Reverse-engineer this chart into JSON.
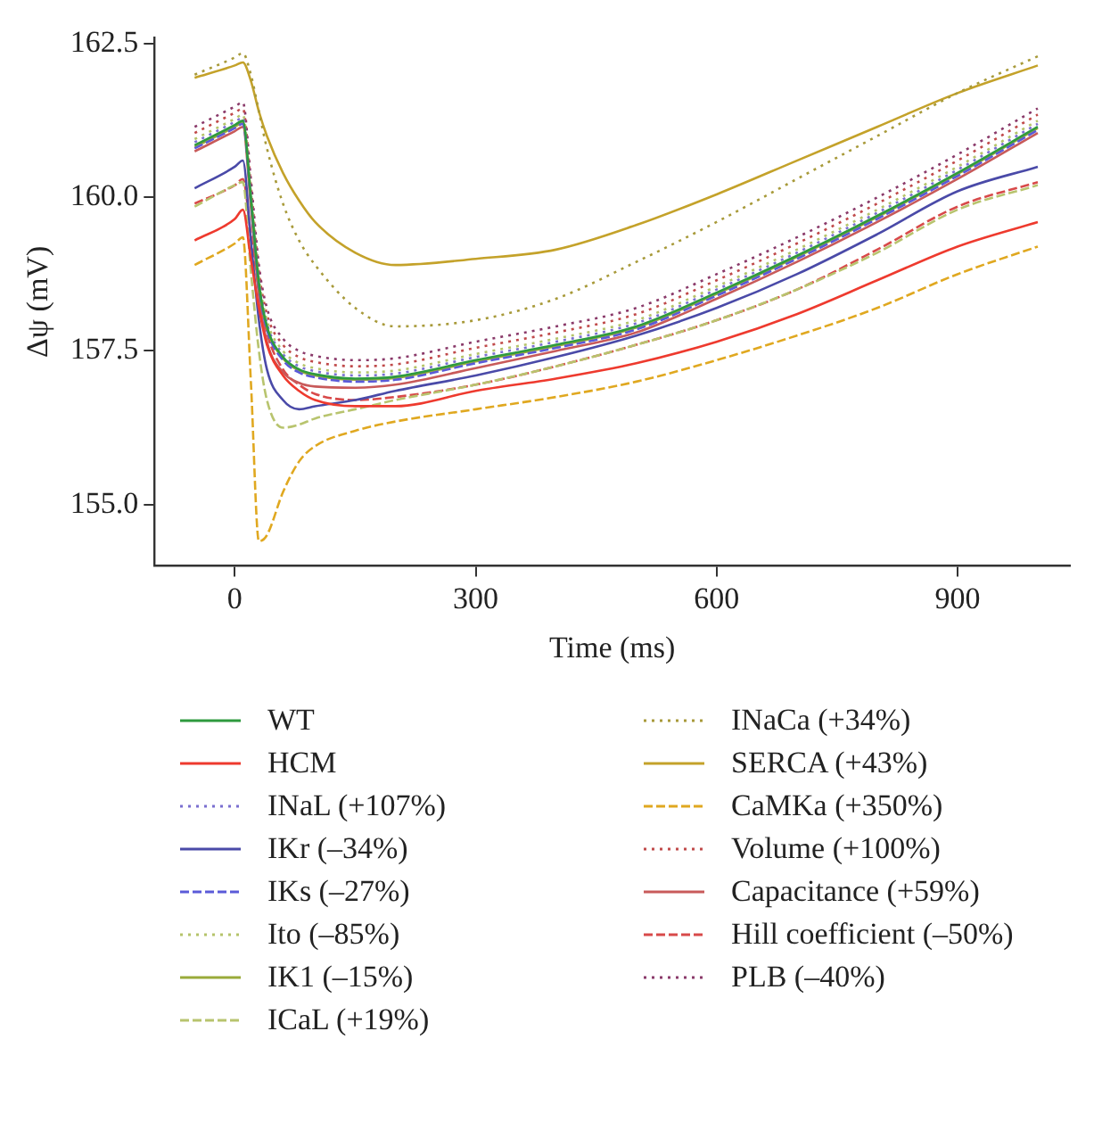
{
  "chart_data": {
    "type": "line",
    "xlabel": "Time (ms)",
    "ylabel": "Δψ (mV)",
    "x": [
      -50,
      0,
      10,
      20,
      30,
      40,
      60,
      80,
      100,
      150,
      200,
      300,
      400,
      500,
      600,
      700,
      800,
      900,
      1000
    ],
    "xlim": [
      -100,
      1040
    ],
    "xticks": [
      0,
      300,
      600,
      900
    ],
    "ylim": [
      154,
      162.6
    ],
    "yticks": [
      {
        "value": 155,
        "label": "155.0"
      },
      157.5,
      {
        "value": 160,
        "label": "160.0"
      },
      162.5
    ],
    "grid": false,
    "legend": "bottom",
    "marker": "none",
    "series": [
      {
        "name": "WT",
        "color": "#2e9a3e",
        "line_style": "solid",
        "values": [
          160.85,
          161.18,
          161.25,
          160.0,
          158.6,
          157.9,
          157.4,
          157.2,
          157.12,
          157.05,
          157.08,
          157.35,
          157.6,
          157.9,
          158.45,
          159.05,
          159.7,
          160.4,
          161.15
        ]
      },
      {
        "name": "HCM",
        "color": "#ee3a2e",
        "line_style": "solid",
        "values": [
          159.3,
          159.65,
          159.8,
          159.0,
          158.2,
          157.6,
          157.1,
          156.85,
          156.7,
          156.6,
          156.6,
          156.85,
          157.05,
          157.3,
          157.65,
          158.1,
          158.65,
          159.2,
          159.6
        ]
      },
      {
        "name": "INaL (+107%)",
        "color": "#7a6fd0",
        "line_style": "dotted",
        "values": [
          160.9,
          161.23,
          161.3,
          160.05,
          158.65,
          157.95,
          157.45,
          157.25,
          157.17,
          157.1,
          157.13,
          157.4,
          157.65,
          157.95,
          158.5,
          159.1,
          159.75,
          160.45,
          161.2
        ]
      },
      {
        "name": "IKr (–34%)",
        "color": "#4a4aa8",
        "line_style": "solid",
        "values": [
          160.15,
          160.5,
          160.6,
          159.3,
          158.0,
          157.2,
          156.7,
          156.55,
          156.6,
          156.7,
          156.85,
          157.1,
          157.4,
          157.75,
          158.2,
          158.75,
          159.4,
          160.1,
          160.5
        ]
      },
      {
        "name": "IKs (–27%)",
        "color": "#5a5ad8",
        "line_style": "dashed",
        "values": [
          160.8,
          161.13,
          161.2,
          159.95,
          158.55,
          157.85,
          157.35,
          157.15,
          157.07,
          157.0,
          157.03,
          157.3,
          157.55,
          157.85,
          158.4,
          159.0,
          159.65,
          160.35,
          161.1
        ]
      },
      {
        "name": "Ito (–85%)",
        "color": "#b5c46a",
        "line_style": "dotted",
        "values": [
          160.95,
          161.28,
          161.35,
          160.1,
          158.7,
          158.0,
          157.5,
          157.3,
          157.22,
          157.15,
          157.18,
          157.45,
          157.7,
          158.0,
          158.55,
          159.15,
          159.8,
          160.5,
          161.25
        ]
      },
      {
        "name": "IK1 (–15%)",
        "color": "#9aab3a",
        "line_style": "solid",
        "values": [
          160.82,
          161.15,
          161.22,
          159.98,
          158.58,
          157.88,
          157.38,
          157.18,
          157.1,
          157.03,
          157.06,
          157.33,
          157.58,
          157.88,
          158.43,
          159.03,
          159.68,
          160.38,
          161.13
        ]
      },
      {
        "name": "ICaL (+19%)",
        "color": "#b8c46e",
        "line_style": "dashed",
        "values": [
          159.85,
          160.2,
          160.25,
          158.8,
          157.5,
          156.7,
          156.25,
          156.3,
          156.4,
          156.55,
          156.7,
          156.95,
          157.25,
          157.6,
          158.0,
          158.5,
          159.1,
          159.8,
          160.2
        ]
      },
      {
        "name": "INaCa (+34%)",
        "color": "#a89a3a",
        "line_style": "dotted",
        "values": [
          162.0,
          162.28,
          162.35,
          162.0,
          161.4,
          160.8,
          159.9,
          159.3,
          158.9,
          158.2,
          157.9,
          158.0,
          158.35,
          158.95,
          159.6,
          160.3,
          161.0,
          161.7,
          162.3
        ]
      },
      {
        "name": "SERCA (+43%)",
        "color": "#c4a22a",
        "line_style": "solid",
        "values": [
          161.95,
          162.15,
          162.2,
          161.9,
          161.4,
          161.0,
          160.4,
          159.95,
          159.6,
          159.1,
          158.9,
          159.0,
          159.15,
          159.55,
          160.05,
          160.6,
          161.15,
          161.7,
          162.15
        ]
      },
      {
        "name": "CaMKa (+350%)",
        "color": "#e0a820",
        "line_style": "dashed",
        "values": [
          158.9,
          159.25,
          159.35,
          157.0,
          154.4,
          154.5,
          155.2,
          155.7,
          155.95,
          156.2,
          156.35,
          156.55,
          156.75,
          157.0,
          157.35,
          157.75,
          158.2,
          158.75,
          159.2
        ]
      },
      {
        "name": "Volume (+100%)",
        "color": "#c04a4a",
        "line_style": "dotted",
        "values": [
          161.05,
          161.38,
          161.45,
          160.2,
          158.8,
          158.1,
          157.6,
          157.4,
          157.32,
          157.25,
          157.28,
          157.55,
          157.8,
          158.1,
          158.65,
          159.25,
          159.9,
          160.6,
          161.35
        ]
      },
      {
        "name": "Capacitance (+59%)",
        "color": "#c85a5a",
        "line_style": "solid",
        "values": [
          160.75,
          161.08,
          161.15,
          159.85,
          158.4,
          157.65,
          157.15,
          156.98,
          156.92,
          156.9,
          156.95,
          157.22,
          157.5,
          157.8,
          158.35,
          158.95,
          159.6,
          160.3,
          161.05
        ]
      },
      {
        "name": "Hill coefficient (–50%)",
        "color": "#d84a4a",
        "line_style": "dashed",
        "values": [
          159.9,
          160.2,
          160.3,
          159.4,
          158.5,
          157.8,
          157.2,
          156.95,
          156.8,
          156.7,
          156.75,
          156.95,
          157.25,
          157.6,
          158.0,
          158.5,
          159.15,
          159.85,
          160.25
        ]
      },
      {
        "name": "PLB (–40%)",
        "color": "#8a3a6a",
        "line_style": "dotted",
        "values": [
          161.15,
          161.48,
          161.55,
          160.3,
          158.9,
          158.2,
          157.7,
          157.5,
          157.42,
          157.35,
          157.38,
          157.65,
          157.9,
          158.2,
          158.75,
          159.35,
          160.0,
          160.7,
          161.45
        ]
      }
    ]
  }
}
